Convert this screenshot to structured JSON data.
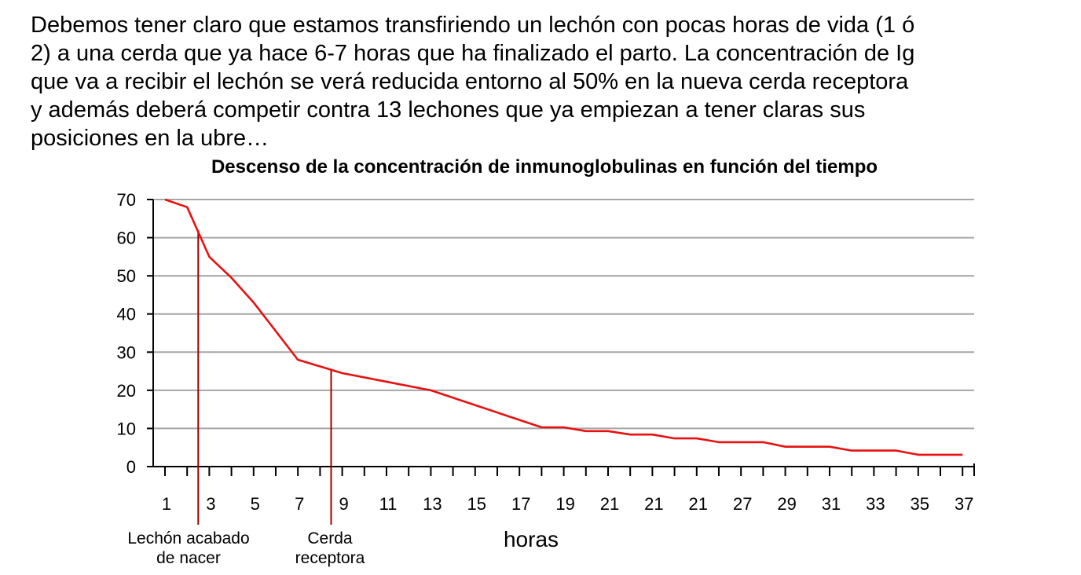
{
  "paragraph": {
    "lines": [
      "Debemos tener claro que estamos transfiriendo un lechón con pocas horas de vida (1 ó",
      "2) a una cerda que ya hace 6-7 horas que ha finalizado el parto. La concentración de Ig",
      "que va a recibir el lechón se verá reducida entorno al 50% en la nueva cerda receptora",
      "y además deberá competir contra 13 lechones que ya empiezan a tener claras sus",
      "posiciones en la ubre…"
    ]
  },
  "colors": {
    "line": "#e81010",
    "marker": "#a00000",
    "grid": "#a6a6a6",
    "axis": "#000000"
  },
  "chart_data": {
    "type": "line",
    "title": "Descenso de la concentración de inmunoglobulinas en función del tiempo",
    "xlabel": "horas",
    "ylabel": "",
    "ylim": [
      0,
      70
    ],
    "y_ticks": [
      0,
      10,
      20,
      30,
      40,
      50,
      60,
      70
    ],
    "x_tick_labels": [
      "1",
      "3",
      "5",
      "7",
      "9",
      "11",
      "13",
      "15",
      "17",
      "19",
      "21",
      "21",
      "21",
      "27",
      "29",
      "31",
      "33",
      "35",
      "37"
    ],
    "grid": true,
    "series": [
      {
        "x": [
          1,
          2,
          3,
          4,
          5,
          7,
          9,
          13,
          18,
          19,
          20,
          21,
          22,
          23,
          24,
          25,
          26,
          27,
          28,
          29,
          30,
          31,
          32,
          33,
          34,
          35,
          36,
          37
        ],
        "values": [
          70,
          68,
          55,
          49.5,
          43,
          28,
          24.5,
          20,
          10.3,
          10.3,
          9.3,
          9.3,
          8.4,
          8.4,
          7.4,
          7.4,
          6.4,
          6.4,
          6.4,
          5.2,
          5.2,
          5.2,
          4.2,
          4.2,
          4.2,
          3.1,
          3.1,
          3.1
        ]
      }
    ],
    "annotations": [
      {
        "x": 2.5,
        "y": 62,
        "label_lines": [
          "Lechón acabado",
          "de nacer"
        ]
      },
      {
        "x": 8.5,
        "y": 25.5,
        "label_lines": [
          "Cerda",
          "receptora"
        ]
      }
    ]
  }
}
